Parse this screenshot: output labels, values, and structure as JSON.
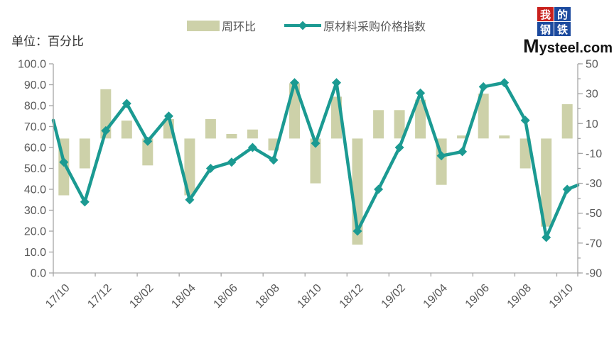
{
  "title_unit": "单位：百分比",
  "legend": {
    "items": [
      {
        "label": "周环比",
        "type": "bar",
        "color": "#cdd1a9"
      },
      {
        "label": "原材料采购价格指数",
        "type": "line",
        "color": "#1b9a92"
      }
    ]
  },
  "logo": {
    "grid_chars": [
      "我",
      "的",
      "钢",
      "铁"
    ],
    "grid_colors": [
      "#c9201d",
      "#1c4a9e",
      "#1c4a9e",
      "#1c4a9e"
    ],
    "domain_text": "Mysteel.com"
  },
  "chart_data": {
    "type": "bar+line",
    "categories": [
      "17/10",
      "17/11",
      "17/12",
      "18/01",
      "18/02",
      "18/03",
      "18/04",
      "18/05",
      "18/06",
      "18/07",
      "18/08",
      "18/09",
      "18/10",
      "18/11",
      "18/12",
      "19/01",
      "19/02",
      "19/03",
      "19/04",
      "19/05",
      "19/06",
      "19/07",
      "19/08",
      "19/09",
      "19/10"
    ],
    "x_tick_labels": [
      "17/10",
      "17/12",
      "18/02",
      "18/04",
      "18/06",
      "18/08",
      "18/10",
      "18/12",
      "19/02",
      "19/04",
      "19/06",
      "19/08",
      "19/10"
    ],
    "series": [
      {
        "name": "周环比",
        "type": "bar",
        "axis": "right",
        "color": "#cdd1a9",
        "values": [
          -38,
          -20,
          33,
          12,
          -18,
          13,
          -38,
          13,
          3,
          6,
          -8,
          37,
          -30,
          28,
          -71,
          19,
          19,
          26,
          -31,
          2,
          30,
          2,
          -20,
          -59,
          23
        ]
      },
      {
        "name": "原材料采购价格指数",
        "type": "line",
        "axis": "left",
        "color": "#1b9a92",
        "marker": "diamond",
        "values": [
          53,
          34,
          68,
          81,
          63,
          75,
          35,
          50,
          53,
          60,
          54,
          91,
          62,
          91,
          20,
          40,
          60,
          86,
          56,
          58,
          89,
          91,
          73,
          17,
          40
        ],
        "edge_lead_in_value": 73,
        "edge_lead_out_value": 42
      }
    ],
    "left_axis": {
      "min": 0,
      "max": 100,
      "step": 10,
      "labels": [
        "100.0",
        "90.0",
        "80.0",
        "70.0",
        "60.0",
        "50.0",
        "40.0",
        "30.0",
        "20.0",
        "10.0",
        "0.0"
      ]
    },
    "right_axis": {
      "min": -90,
      "max": 50,
      "major_step": 20,
      "minor_step": 10,
      "labels": [
        "50",
        "30",
        "10",
        "-10",
        "-30",
        "-50",
        "-70",
        "-90"
      ]
    },
    "grid": false,
    "legend_position": "top-center",
    "axis_color": "#a6a6a6",
    "tick_label_color": "#595959"
  }
}
